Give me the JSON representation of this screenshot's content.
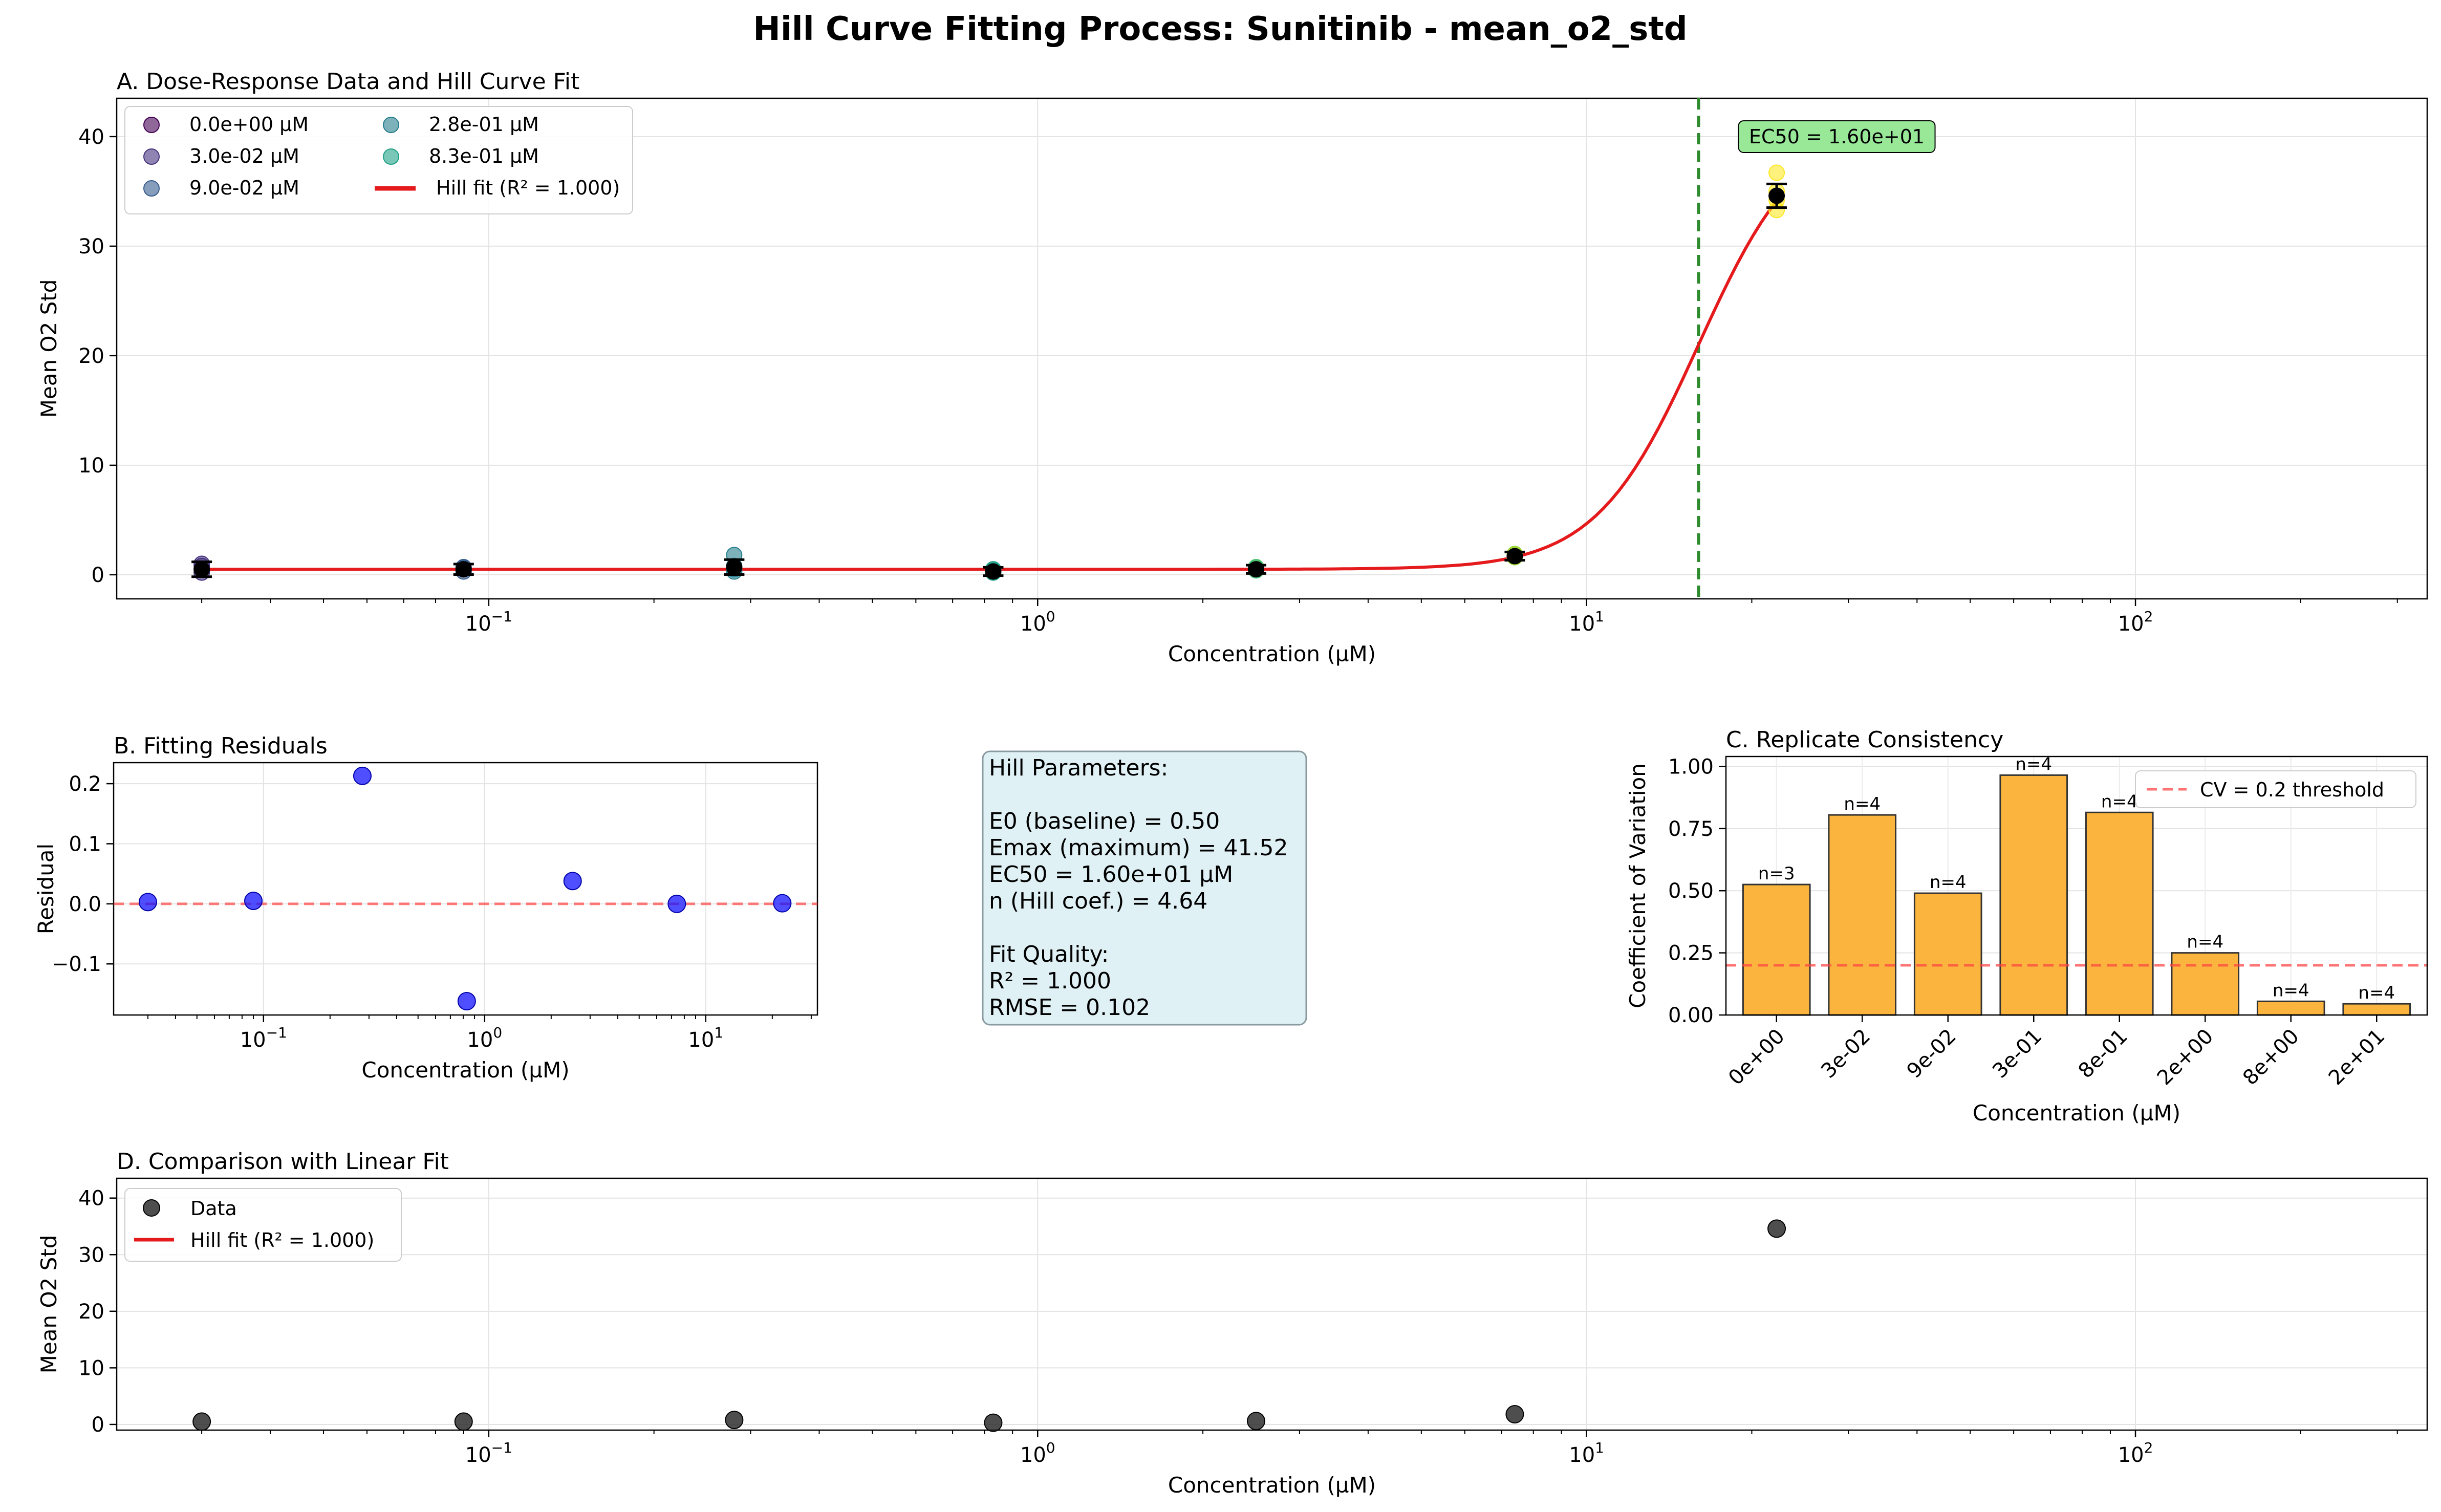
{
  "title": "Hill Curve Fitting Process: Sunitinib - mean_o2_std",
  "colors": {
    "fit": "#e41a1c",
    "ec50_line": "#2e8b2e",
    "ec50_box": "#98e898",
    "residual": "#1414ff",
    "threshold": "#ff4444",
    "bars": "#fbb43d",
    "params_box": "#e0f1f5",
    "data_points": "#222222"
  },
  "chart_data": [
    {
      "panel": "A",
      "type": "scatter",
      "title": "A. Dose-Response Data and Hill Curve Fit",
      "xlabel": "Concentration (µM)",
      "ylabel": "Mean O2 Std",
      "xscale": "log",
      "xlim": [
        0.021,
        340
      ],
      "ylim": [
        -2.2,
        43.5
      ],
      "x_ticks": [
        0.1,
        1,
        10,
        100
      ],
      "x_tick_labels": [
        [
          "10",
          "−1"
        ],
        [
          "10",
          "0"
        ],
        [
          "10",
          "1"
        ],
        [
          "10",
          "2"
        ]
      ],
      "y_ticks": [
        0,
        10,
        20,
        30,
        40
      ],
      "grid": true,
      "legend": {
        "placement": "top-left",
        "entries": [
          "0.0e+00 µM",
          "3.0e-02 µM",
          "9.0e-02 µM",
          "2.8e-01 µM",
          "8.3e-01 µM",
          "Hill fit (R² = 1.000)"
        ],
        "colors": [
          "#440154",
          "#46327e",
          "#365c8d",
          "#277f8e",
          "#1fa187",
          "#e41a1c"
        ]
      },
      "ec50": 16.0,
      "ec50_label": "EC50 = 1.60e+01",
      "replicates": [
        {
          "x": 0.03,
          "y": [
            0.2,
            0.5,
            0.8,
            1.0
          ],
          "color": "#46327e"
        },
        {
          "x": 0.09,
          "y": [
            0.3,
            0.5,
            0.6,
            0.7
          ],
          "color": "#365c8d"
        },
        {
          "x": 0.28,
          "y": [
            0.3,
            0.5,
            0.8,
            1.8
          ],
          "color": "#277f8e"
        },
        {
          "x": 0.83,
          "y": [
            0.2,
            0.3,
            0.4,
            0.5
          ],
          "color": "#1fa187"
        },
        {
          "x": 2.5,
          "y": [
            0.4,
            0.5,
            0.6,
            0.7
          ],
          "color": "#4ac16d"
        },
        {
          "x": 7.4,
          "y": [
            1.6,
            1.7,
            1.8,
            1.9
          ],
          "color": "#a0da39"
        },
        {
          "x": 22.2,
          "y": [
            33.3,
            34.2,
            35.0,
            36.7
          ],
          "color": "#fde725"
        }
      ],
      "means": [
        {
          "x": 0.03,
          "y": 0.5,
          "err": 0.4
        },
        {
          "x": 0.09,
          "y": 0.5,
          "err": 0.2
        },
        {
          "x": 0.28,
          "y": 0.7,
          "err": 0.4
        },
        {
          "x": 0.83,
          "y": 0.3,
          "err": 0.1
        },
        {
          "x": 2.5,
          "y": 0.5,
          "err": 0.1
        },
        {
          "x": 7.4,
          "y": 1.7,
          "err": 0.1
        },
        {
          "x": 22.2,
          "y": 34.6,
          "err": 0.8
        }
      ]
    },
    {
      "panel": "B",
      "type": "scatter",
      "title": "B. Fitting Residuals",
      "xlabel": "Concentration (µM)",
      "ylabel": "Residual",
      "xscale": "log",
      "xlim": [
        0.021,
        32
      ],
      "ylim": [
        -0.185,
        0.235
      ],
      "x_ticks": [
        0.1,
        1,
        10
      ],
      "x_tick_labels": [
        [
          "10",
          "−1"
        ],
        [
          "10",
          "0"
        ],
        [
          "10",
          "1"
        ]
      ],
      "y_ticks": [
        -0.1,
        0.0,
        0.1,
        0.2
      ],
      "y_tick_labels": [
        "−0.1",
        "0.0",
        "0.1",
        "0.2"
      ],
      "grid": true,
      "points": [
        {
          "x": 0.03,
          "y": 0.003
        },
        {
          "x": 0.09,
          "y": 0.005
        },
        {
          "x": 0.28,
          "y": 0.213
        },
        {
          "x": 0.83,
          "y": -0.162
        },
        {
          "x": 2.5,
          "y": 0.038
        },
        {
          "x": 7.4,
          "y": 0.0
        },
        {
          "x": 22.2,
          "y": 0.001
        }
      ]
    },
    {
      "panel": "C",
      "type": "bar",
      "title": "C. Replicate Consistency",
      "xlabel": "Concentration (µM)",
      "ylabel": "Coefficient of Variation",
      "categories": [
        "0e+00",
        "3e-02",
        "9e-02",
        "3e-01",
        "8e-01",
        "2e+00",
        "8e+00",
        "2e+01"
      ],
      "values": [
        0.525,
        0.805,
        0.49,
        0.965,
        0.815,
        0.25,
        0.055,
        0.045
      ],
      "bar_labels": [
        "n=3",
        "n=4",
        "n=4",
        "n=4",
        "n=4",
        "n=4",
        "n=4",
        "n=4"
      ],
      "ylim": [
        0,
        1.0
      ],
      "y_ticks": [
        0.0,
        0.25,
        0.5,
        0.75,
        1.0
      ],
      "y_tick_labels": [
        "0.00",
        "0.25",
        "0.50",
        "0.75",
        "1.00"
      ],
      "threshold": 0.2,
      "legend": {
        "placement": "top-right",
        "entries": [
          "CV = 0.2 threshold"
        ]
      },
      "grid": true
    },
    {
      "panel": "D",
      "type": "scatter",
      "title": "D. Comparison with Linear Fit",
      "xlabel": "Concentration (µM)",
      "ylabel": "Mean O2 Std",
      "xscale": "log",
      "xlim": [
        0.021,
        340
      ],
      "ylim": [
        -1.0,
        43.5
      ],
      "x_ticks": [
        0.1,
        1,
        10,
        100
      ],
      "x_tick_labels": [
        [
          "10",
          "−1"
        ],
        [
          "10",
          "0"
        ],
        [
          "10",
          "1"
        ],
        [
          "10",
          "2"
        ]
      ],
      "y_ticks": [
        0,
        10,
        20,
        30,
        40
      ],
      "grid": true,
      "legend": {
        "placement": "top-left",
        "entries": [
          "Data",
          "Hill fit (R² = 1.000)"
        ]
      },
      "points": [
        {
          "x": 0.03,
          "y": 0.5
        },
        {
          "x": 0.09,
          "y": 0.5
        },
        {
          "x": 0.28,
          "y": 0.8
        },
        {
          "x": 0.83,
          "y": 0.3
        },
        {
          "x": 2.5,
          "y": 0.6
        },
        {
          "x": 7.4,
          "y": 1.8
        },
        {
          "x": 22.2,
          "y": 34.6
        }
      ]
    }
  ],
  "params_box": {
    "lines": [
      "Hill Parameters:",
      "",
      "E0 (baseline) = 0.50",
      "Emax (maximum) = 41.52",
      "EC50 = 1.60e+01 µM",
      "n (Hill coef.) = 4.64",
      "",
      "Fit Quality:",
      "R² = 1.000",
      "RMSE = 0.102"
    ]
  }
}
